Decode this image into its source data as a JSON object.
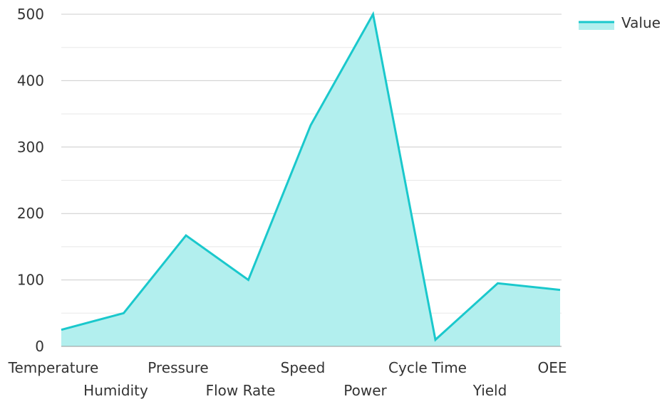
{
  "chart_data": {
    "type": "area",
    "categories": [
      "Temperature",
      "Humidity",
      "Pressure",
      "Flow Rate",
      "Speed",
      "Power",
      "Cycle Time",
      "Yield",
      "OEE"
    ],
    "series": [
      {
        "name": "Value",
        "values": [
          25,
          50,
          167,
          100,
          333,
          500,
          10,
          95,
          85
        ]
      }
    ],
    "ylim": [
      0,
      500
    ],
    "yticks": [
      0,
      100,
      200,
      300,
      400,
      500
    ],
    "grid": true,
    "legend": "top-right",
    "colors": {
      "line": "#1ac8cc",
      "fill": "#b2efee",
      "grid_major": "#cccccc",
      "grid_minor": "#e8e8e8",
      "axis": "#999999"
    },
    "title": "",
    "xlabel": "",
    "ylabel": ""
  }
}
